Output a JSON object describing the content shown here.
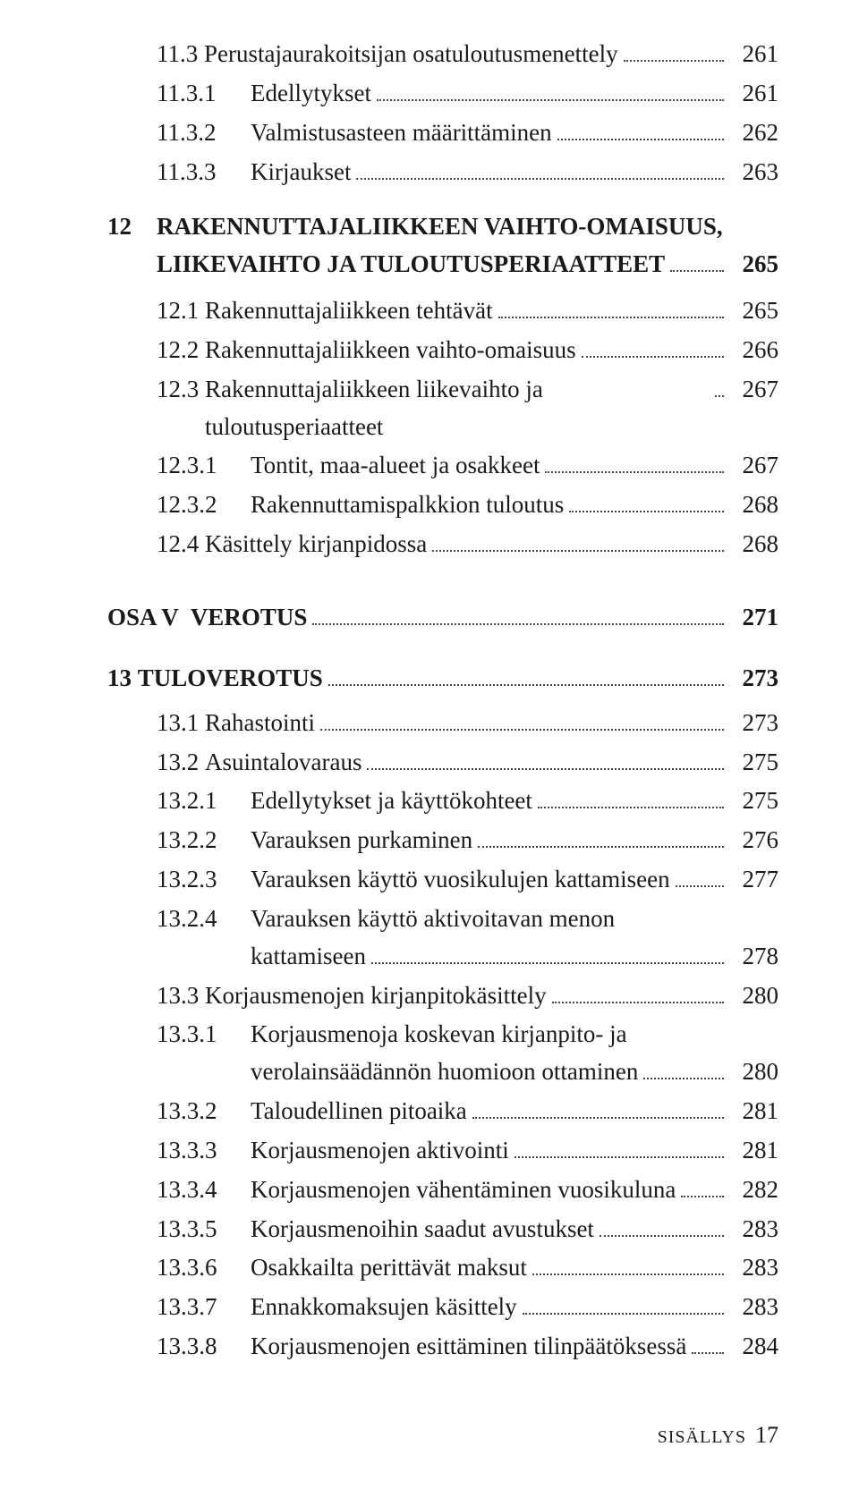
{
  "entries": [
    {
      "type": "lvl2",
      "num": "11.3 ",
      "text": "Perustajaurakoitsijan osatuloutusmenettely",
      "page": "261"
    },
    {
      "type": "lvl3",
      "num": "11.3.1",
      "text": "Edellytykset",
      "page": "261"
    },
    {
      "type": "lvl3",
      "num": "11.3.2",
      "text": "Valmistusasteen määrittäminen",
      "page": "262"
    },
    {
      "type": "lvl3",
      "num": "11.3.3",
      "text": "Kirjaukset",
      "page": "263"
    },
    {
      "type": "chap12",
      "num": "12",
      "text1": "RAKENNUTTAJALIIKKEEN VAIHTO-OMAISUUS,",
      "text2": "LIIKEVAIHTO JA TULOUTUSPERIAATTEET",
      "page": "265"
    },
    {
      "type": "lvl2",
      "num": "12.1 ",
      "text": "Rakennuttajaliikkeen tehtävät",
      "page": "265"
    },
    {
      "type": "lvl2",
      "num": "12.2 ",
      "text": "Rakennuttajaliikkeen vaihto-omaisuus",
      "page": "266"
    },
    {
      "type": "lvl2",
      "num": "12.3 ",
      "text": "Rakennuttajaliikkeen liikevaihto ja tuloutusperiaatteet",
      "page": "267"
    },
    {
      "type": "lvl3",
      "num": "12.3.1",
      "text": "Tontit, maa-alueet ja osakkeet",
      "page": "267"
    },
    {
      "type": "lvl3",
      "num": "12.3.2",
      "text": "Rakennuttamispalkkion tuloutus",
      "page": "268"
    },
    {
      "type": "lvl2",
      "num": "12.4 ",
      "text": "Käsittely kirjanpidossa",
      "page": "268"
    },
    {
      "type": "part",
      "num": "OSA V  ",
      "text": "VEROTUS",
      "page": "271"
    },
    {
      "type": "chap",
      "num": "13 ",
      "text": "TULOVEROTUS",
      "page": "273"
    },
    {
      "type": "lvl2",
      "num": "13.1 ",
      "text": "Rahastointi",
      "page": "273"
    },
    {
      "type": "lvl2",
      "num": "13.2 ",
      "text": "Asuintalovaraus",
      "page": "275"
    },
    {
      "type": "lvl3",
      "num": "13.2.1",
      "text": "Edellytykset ja käyttökohteet",
      "page": "275"
    },
    {
      "type": "lvl3",
      "num": "13.2.2",
      "text": "Varauksen purkaminen",
      "page": "276"
    },
    {
      "type": "lvl3",
      "num": "13.2.3",
      "text": "Varauksen käyttö vuosikulujen kattamiseen",
      "page": "277"
    },
    {
      "type": "lvl3wrap",
      "num": "13.2.4",
      "text1": "Varauksen käyttö aktivoitavan menon",
      "text2": "kattamiseen",
      "page": "278"
    },
    {
      "type": "lvl2",
      "num": "13.3 ",
      "text": "Korjausmenojen kirjanpitokäsittely",
      "page": "280"
    },
    {
      "type": "lvl3wrap",
      "num": "13.3.1",
      "text1": "Korjausmenoja koskevan kirjanpito- ja",
      "text2": "verolainsäädännön huomioon ottaminen",
      "page": "280"
    },
    {
      "type": "lvl3",
      "num": "13.3.2",
      "text": "Taloudellinen pitoaika",
      "page": "281"
    },
    {
      "type": "lvl3",
      "num": "13.3.3",
      "text": "Korjausmenojen aktivointi",
      "page": "281"
    },
    {
      "type": "lvl3",
      "num": "13.3.4",
      "text": "Korjausmenojen vähentäminen vuosikuluna",
      "page": "282"
    },
    {
      "type": "lvl3",
      "num": "13.3.5",
      "text": "Korjausmenoihin saadut avustukset",
      "page": "283"
    },
    {
      "type": "lvl3",
      "num": "13.3.6",
      "text": "Osakkailta perittävät maksut",
      "page": "283"
    },
    {
      "type": "lvl3",
      "num": "13.3.7",
      "text": "Ennakkomaksujen käsittely",
      "page": "283"
    },
    {
      "type": "lvl3",
      "num": "13.3.8",
      "text": "Korjausmenojen esittäminen tilinpäätöksessä",
      "page": "284"
    }
  ],
  "footer": {
    "label": "SISÄLLYS",
    "page": "17"
  }
}
